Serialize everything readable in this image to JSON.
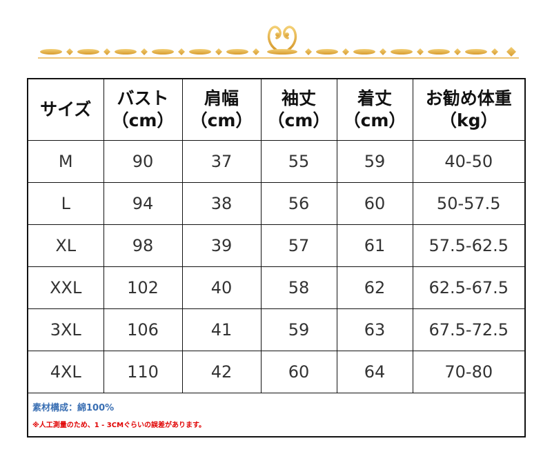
{
  "table": {
    "headers": [
      {
        "label": "サイズ",
        "unit": ""
      },
      {
        "label": "バスト",
        "unit": "（cm）"
      },
      {
        "label": "肩幅",
        "unit": "（cm）"
      },
      {
        "label": "袖丈",
        "unit": "（cm）"
      },
      {
        "label": "着丈",
        "unit": "（cm）"
      },
      {
        "label": "お勧め体重",
        "unit": "（kg）"
      }
    ],
    "rows": [
      [
        "M",
        "90",
        "37",
        "55",
        "59",
        "40-50"
      ],
      [
        "L",
        "94",
        "38",
        "56",
        "60",
        "50-57.5"
      ],
      [
        "XL",
        "98",
        "39",
        "57",
        "61",
        "57.5-62.5"
      ],
      [
        "XXL",
        "102",
        "40",
        "58",
        "62",
        "62.5-67.5"
      ],
      [
        "3XL",
        "106",
        "41",
        "59",
        "63",
        "67.5-72.5"
      ],
      [
        "4XL",
        "110",
        "42",
        "60",
        "64",
        "70-80"
      ]
    ]
  },
  "notes": {
    "material": "素材構成：綿100%",
    "measurement_note": "※人工測量のため、1 - 3CMぐらいの誤差があります。"
  },
  "colors": {
    "gold": "#e8b24a",
    "border": "#111111",
    "material_text": "#3a6fb3",
    "note_text": "#e00000"
  },
  "icons": {
    "ornament": "gold-heart-divider-icon"
  }
}
